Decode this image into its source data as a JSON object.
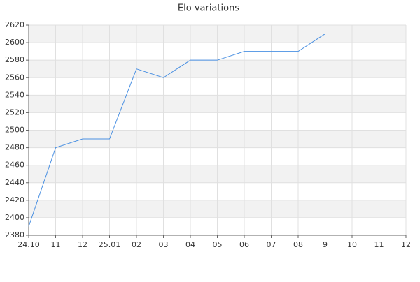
{
  "chart_data": {
    "type": "line",
    "title": "Elo variations",
    "categories": [
      "24.10",
      "11",
      "12",
      "25.01",
      "02",
      "03",
      "04",
      "05",
      "06",
      "07",
      "08",
      "9",
      "10",
      "11",
      "12"
    ],
    "series": [
      {
        "name": "Elo",
        "color": "#4a90e2",
        "values": [
          2390,
          2480,
          2490,
          2490,
          2570,
          2560,
          2580,
          2580,
          2590,
          2590,
          2590,
          2610,
          2610,
          2610,
          2610
        ]
      }
    ],
    "ylim": [
      2380,
      2620
    ],
    "yticks": [
      2380,
      2400,
      2420,
      2440,
      2460,
      2480,
      2500,
      2520,
      2540,
      2560,
      2580,
      2600,
      2620
    ],
    "grid": true
  }
}
